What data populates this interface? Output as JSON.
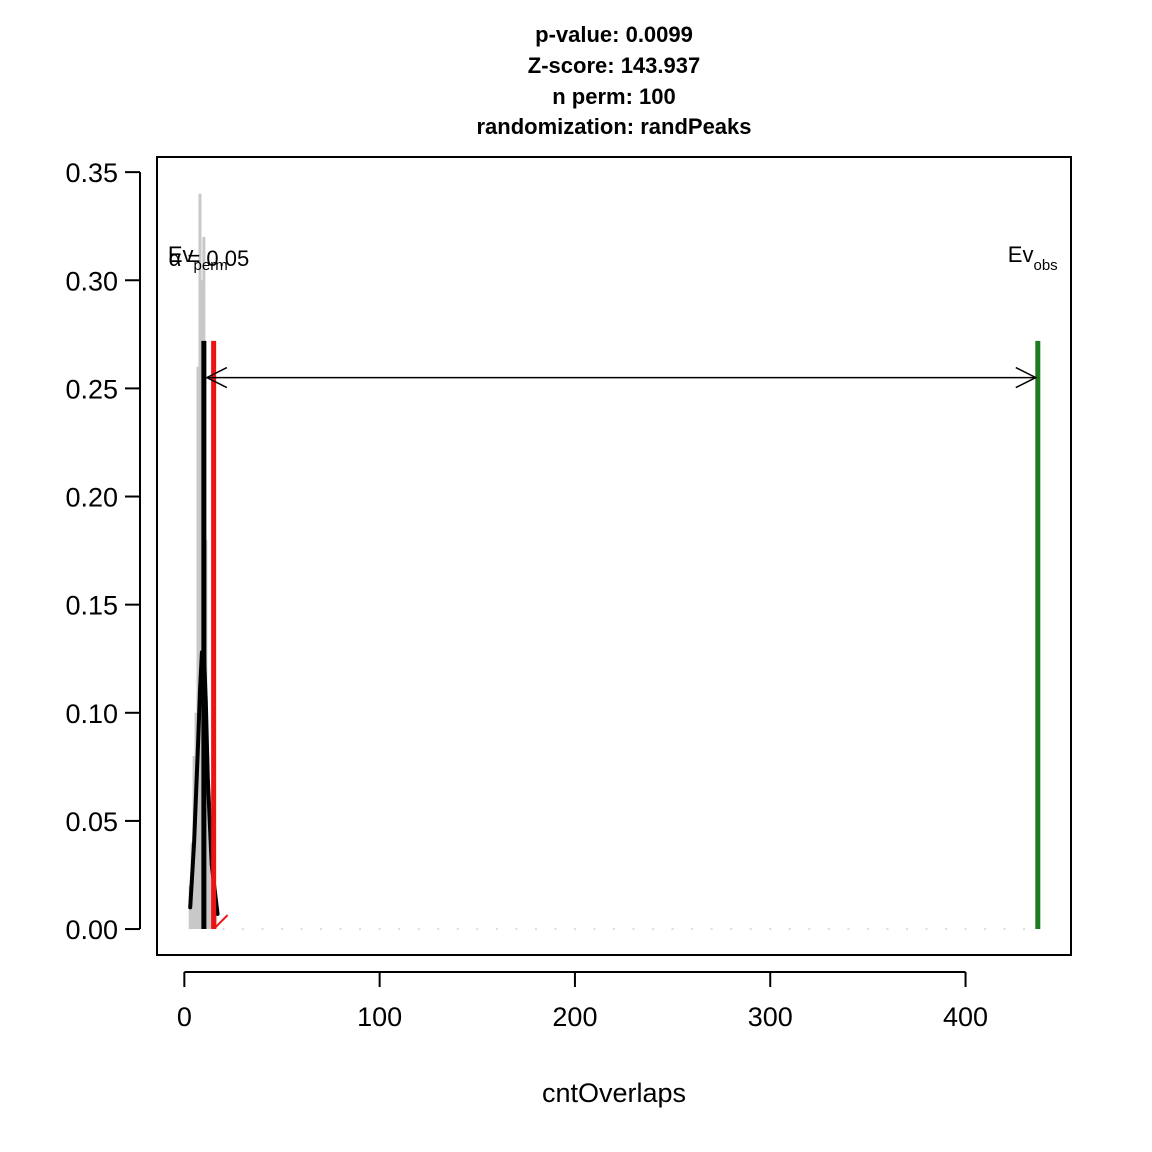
{
  "chart_data": {
    "type": "permutation-test-histogram",
    "title_lines": [
      "p-value:  0.0099",
      "Z-score:  143.937",
      "n perm:  100",
      "randomization:  randPeaks"
    ],
    "xlabel": "cntOverlaps",
    "ylabel": "",
    "xlim": [
      -14,
      454
    ],
    "ylim": [
      -0.012,
      0.357
    ],
    "xticks": [
      0,
      100,
      200,
      300,
      400
    ],
    "yticks": [
      0.0,
      0.05,
      0.1,
      0.15,
      0.2,
      0.25,
      0.3,
      0.35
    ],
    "ytick_labels": [
      "0.00",
      "0.05",
      "0.10",
      "0.15",
      "0.20",
      "0.25",
      "0.30",
      "0.35"
    ],
    "histogram": {
      "x": [
        3,
        4,
        5,
        6,
        7,
        8,
        9,
        10,
        11,
        12,
        13,
        14,
        15,
        16
      ],
      "density": [
        0.02,
        0.04,
        0.08,
        0.1,
        0.26,
        0.34,
        0.3,
        0.32,
        0.18,
        0.08,
        0.04,
        0.02,
        0.01,
        0.01
      ],
      "color": "#c8c8c8"
    },
    "density_curve": {
      "x": [
        3,
        5,
        7,
        8,
        9,
        10,
        11,
        12,
        14,
        17
      ],
      "y": [
        0.01,
        0.04,
        0.085,
        0.11,
        0.128,
        0.128,
        0.105,
        0.07,
        0.03,
        0.007
      ],
      "color": "#000000"
    },
    "ev_perm": {
      "x": 10,
      "ymax": 0.272,
      "label": "Ev",
      "sub": "perm",
      "color": "#000000"
    },
    "alpha_line": {
      "x": 15,
      "ymax": 0.272,
      "label": "α = 0.05",
      "color": "#ee1111"
    },
    "ev_obs": {
      "x": 437,
      "ymax": 0.272,
      "label": "Ev",
      "sub": "obs",
      "color": "#1f7a1f"
    },
    "zscore_arrow": {
      "x0": 10,
      "x1": 437,
      "y": 0.255
    }
  }
}
